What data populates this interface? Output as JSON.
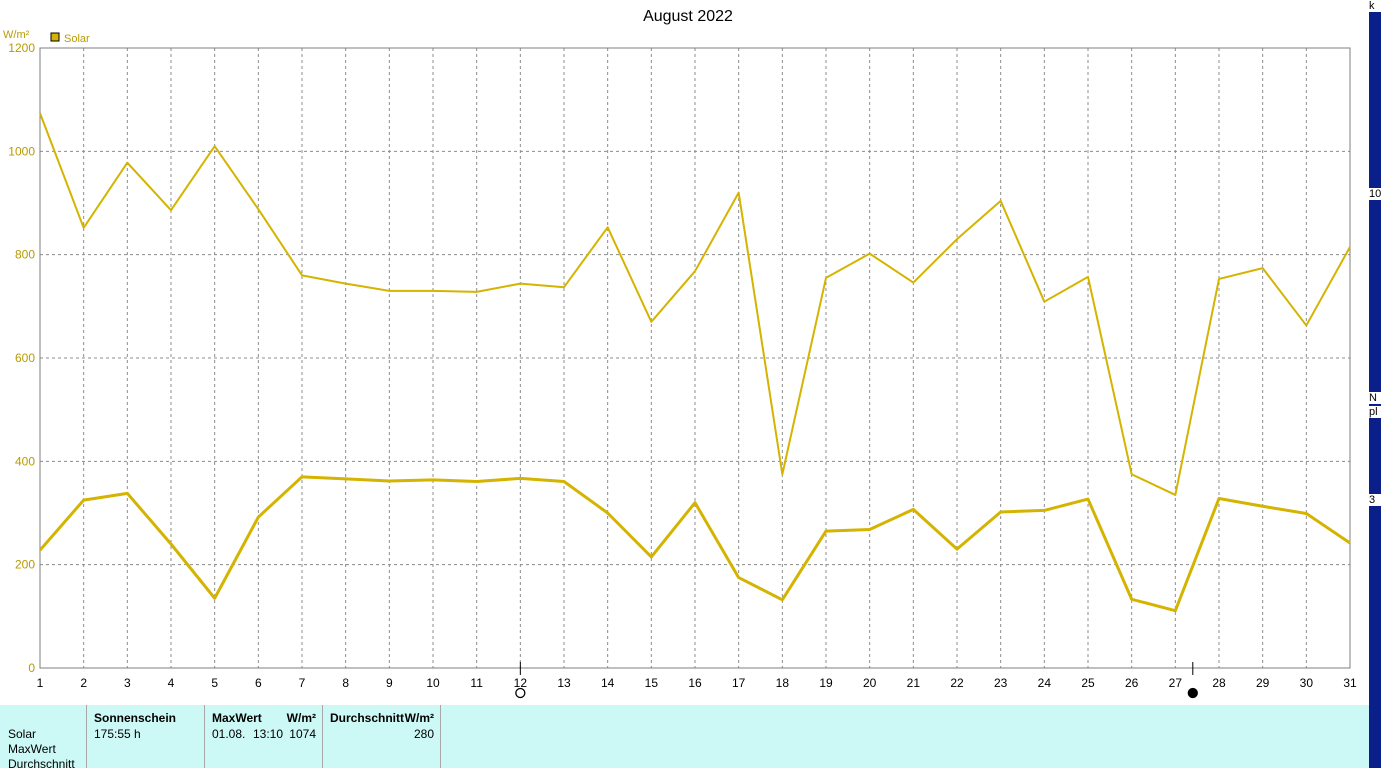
{
  "chart_data": {
    "type": "line",
    "title": "August 2022",
    "ylabel": "W/m²",
    "xlabel": "",
    "ylim": [
      0,
      1200
    ],
    "yticks": [
      0,
      200,
      400,
      600,
      800,
      1000,
      1200
    ],
    "x": [
      1,
      2,
      3,
      4,
      5,
      6,
      7,
      8,
      9,
      10,
      11,
      12,
      13,
      14,
      15,
      16,
      17,
      18,
      19,
      20,
      21,
      22,
      23,
      24,
      25,
      26,
      27,
      28,
      29,
      30,
      31
    ],
    "grid": true,
    "legend": {
      "entries": [
        "Solar"
      ],
      "position": "top-left"
    },
    "series": [
      {
        "name": "Solar",
        "role": "max",
        "color": "#d4b400",
        "values": [
          1074,
          852,
          978,
          886,
          1010,
          888,
          760,
          744,
          730,
          730,
          728,
          744,
          737,
          853,
          670,
          768,
          920,
          375,
          755,
          802,
          746,
          830,
          904,
          709,
          757,
          375,
          335,
          753,
          774,
          663,
          815
        ]
      },
      {
        "name": "Solar",
        "role": "average",
        "color": "#d4b400",
        "values": [
          228,
          325,
          338,
          240,
          135,
          292,
          370,
          366,
          362,
          364,
          361,
          367,
          361,
          300,
          215,
          320,
          175,
          132,
          265,
          268,
          307,
          230,
          302,
          305,
          327,
          133,
          111,
          328,
          313,
          299,
          242
        ]
      }
    ],
    "moon_phases": [
      {
        "phase": "full-moon",
        "day": 12
      },
      {
        "phase": "new-moon",
        "day": 27.4
      }
    ]
  },
  "side_strip": {
    "texts": [
      "k",
      "10",
      "N",
      "pl",
      "3"
    ]
  },
  "stats_panel": {
    "row_labels": [
      "Solar",
      "MaxWert",
      "Durchschnitt"
    ],
    "sunshine": {
      "header": "Sonnenschein",
      "value": "175:55 h"
    },
    "max": {
      "header": "MaxWert",
      "unit": "W/m²",
      "date": "01.08.",
      "time": "13:10",
      "value": "1074"
    },
    "average": {
      "header": "Durchschnitt",
      "unit": "W/m²",
      "value": "280"
    }
  }
}
